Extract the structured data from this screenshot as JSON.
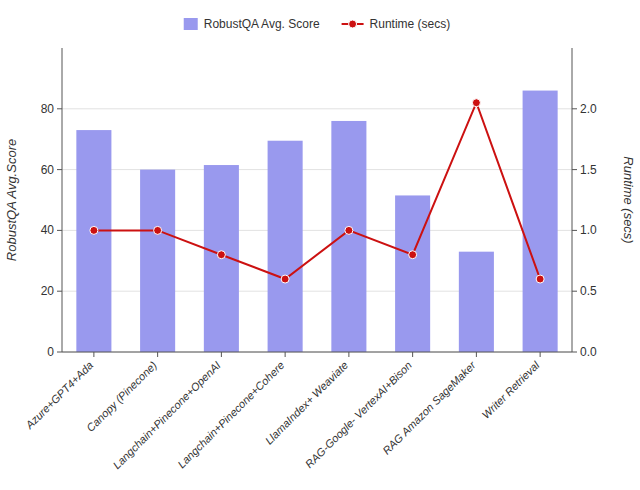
{
  "chart_data": {
    "type": "bar",
    "categories": [
      "Azure+GPT4+Ada",
      "Canopy (Pinecone)",
      "Langchain+Pinecone+OpenAI",
      "Langchain+Pinecone+Cohere",
      "LlamaIndex+ Weaviate",
      "RAG-Google- VertexAI+Bison",
      "RAG Amazon SageMaker",
      "Writer Retrieval"
    ],
    "series": [
      {
        "name": "RobustQA Avg. Score",
        "type": "bar",
        "color": "#9999ee",
        "values": [
          73.0,
          60.0,
          61.5,
          69.5,
          76.0,
          51.5,
          33.0,
          86.0
        ]
      },
      {
        "name": "Runtime (secs)",
        "type": "line",
        "color": "#cc1111",
        "marker": "circle",
        "axis": "y2",
        "values": [
          1.0,
          1.0,
          0.8,
          0.6,
          1.0,
          0.8,
          2.05,
          0.6
        ]
      }
    ],
    "ylabel": "RobustQA Avg.Score",
    "y2label": "Runtime (secs)",
    "ylim": [
      0,
      100
    ],
    "yticks": [
      0,
      20,
      40,
      60,
      80
    ],
    "y2lim": [
      0,
      2.5
    ],
    "y2ticks": [
      {
        "value": 0,
        "label": "0.0"
      },
      0.5,
      {
        "value": 1.0,
        "label": "1.0"
      },
      1.5,
      {
        "value": 2.0,
        "label": "2.0"
      }
    ],
    "grid": true,
    "legend": "upper center"
  }
}
